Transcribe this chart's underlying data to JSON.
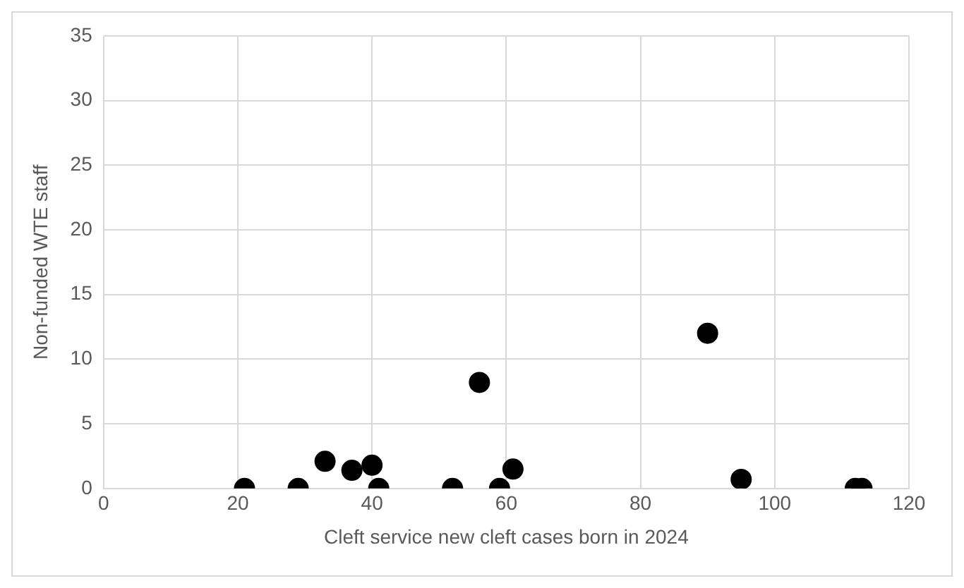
{
  "chart_data": {
    "type": "scatter",
    "xlabel": "Cleft service new cleft cases born in 2024",
    "ylabel": "Non-funded WTE staff",
    "x": [
      21,
      29,
      33,
      37,
      40,
      41,
      52,
      56,
      59,
      61,
      90,
      95,
      112,
      113
    ],
    "values": [
      0,
      0,
      2.1,
      1.4,
      1.8,
      0,
      0,
      8.2,
      0,
      1.5,
      12,
      0.7,
      0,
      0
    ],
    "color": "#000000",
    "marker": "circle",
    "xlim": [
      0,
      120
    ],
    "xticks": [
      0,
      20,
      40,
      60,
      80,
      100,
      120
    ],
    "ylim": [
      0,
      35
    ],
    "yticks": [
      0,
      5,
      10,
      15,
      20,
      25,
      30,
      35
    ],
    "grid": true,
    "legend": false
  }
}
